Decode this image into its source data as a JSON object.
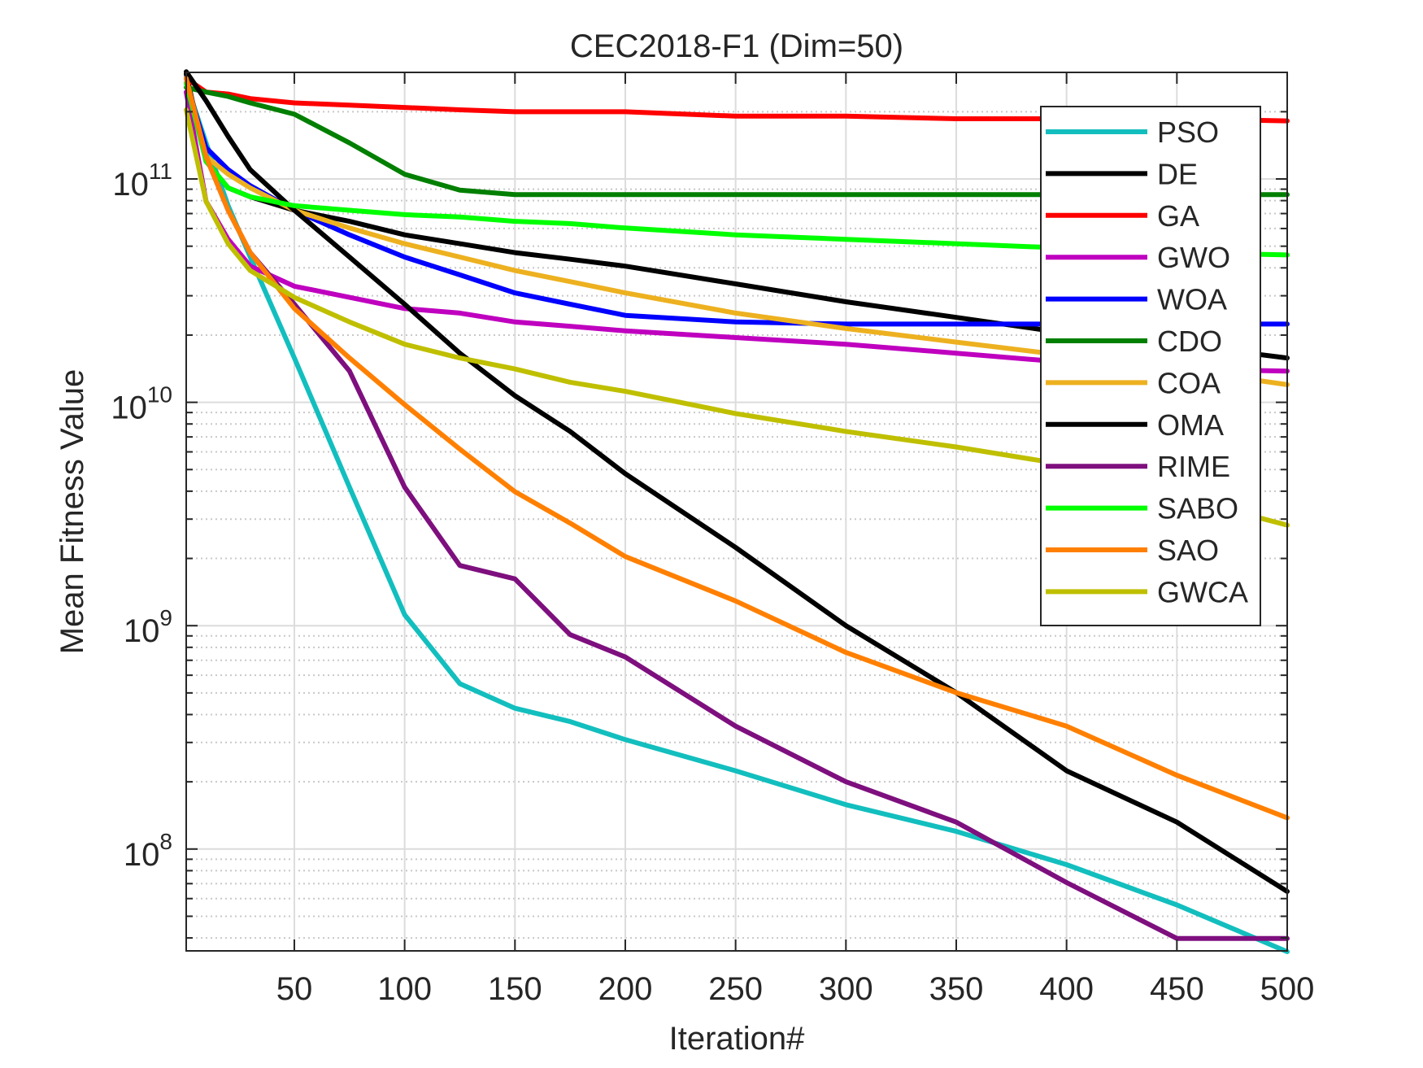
{
  "chart_data": {
    "type": "line",
    "title": "CEC2018-F1 (Dim=50)",
    "xlabel": "Iteration#",
    "ylabel": "Mean Fitness Value",
    "xlim": [
      1,
      500
    ],
    "ylim": [
      35000000.0,
      300000000000.0
    ],
    "yscale": "log",
    "grid": true,
    "minor_grid": true,
    "legend_position": "top-right",
    "x_ticks": [
      50,
      100,
      150,
      200,
      250,
      300,
      350,
      400,
      450,
      500
    ],
    "x_tick_labels": [
      "50",
      "100",
      "150",
      "200",
      "250",
      "300",
      "350",
      "400",
      "450",
      "500"
    ],
    "y_ticks": [
      {
        "value": 100000000.0,
        "base": "10",
        "exponent": "8"
      },
      {
        "value": 1000000000.0,
        "base": "10",
        "exponent": "9"
      },
      {
        "value": 10000000000.0,
        "base": "10",
        "exponent": "10"
      },
      {
        "value": 100000000000.0,
        "base": "10",
        "exponent": "11"
      }
    ],
    "x": [
      1,
      10,
      20,
      30,
      50,
      75,
      100,
      125,
      150,
      175,
      200,
      250,
      300,
      350,
      400,
      450,
      500
    ],
    "series": [
      {
        "name": "PSO",
        "color": "#13BEBE",
        "values": [
          269000000000.0,
          145000000000.0,
          75900000000.0,
          44700000000.0,
          15800000000.0,
          4170000000.0,
          1120000000.0,
          550000000.0,
          427000000.0,
          372000000.0,
          309000000.0,
          224000000.0,
          158000000.0,
          120000000.0,
          85100000.0,
          56200000.0,
          34700000.0
        ]
      },
      {
        "name": "DE",
        "color": "#000000",
        "values": [
          295000000000.0,
          120000000000.0,
          91200000000.0,
          83200000000.0,
          72400000000.0,
          64600000000.0,
          56200000000.0,
          51300000000.0,
          46800000000.0,
          43700000000.0,
          40700000000.0,
          33900000000.0,
          28200000000.0,
          24000000000.0,
          20400000000.0,
          18200000000.0,
          15800000000.0
        ]
      },
      {
        "name": "GA",
        "color": "#FF0000",
        "values": [
          282000000000.0,
          245000000000.0,
          240000000000.0,
          229000000000.0,
          219000000000.0,
          214000000000.0,
          209000000000.0,
          204000000000.0,
          200000000000.0,
          200000000000.0,
          200000000000.0,
          191000000000.0,
          191000000000.0,
          186000000000.0,
          186000000000.0,
          186000000000.0,
          182000000000.0
        ]
      },
      {
        "name": "GWO",
        "color": "#BF00BF",
        "values": [
          245000000000.0,
          79400000000.0,
          53700000000.0,
          40700000000.0,
          33100000000.0,
          29500000000.0,
          26300000000.0,
          25100000000.0,
          22900000000.0,
          21900000000.0,
          20900000000.0,
          19500000000.0,
          18200000000.0,
          16600000000.0,
          15100000000.0,
          14100000000.0,
          13800000000.0
        ]
      },
      {
        "name": "WOA",
        "color": "#0000FF",
        "values": [
          269000000000.0,
          138000000000.0,
          110000000000.0,
          93300000000.0,
          72400000000.0,
          56200000000.0,
          44700000000.0,
          37200000000.0,
          30900000000.0,
          27500000000.0,
          24500000000.0,
          22900000000.0,
          22400000000.0,
          22400000000.0,
          22400000000.0,
          22400000000.0,
          22400000000.0
        ]
      },
      {
        "name": "CDO",
        "color": "#007F00",
        "values": [
          257000000000.0,
          245000000000.0,
          234000000000.0,
          219000000000.0,
          195000000000.0,
          145000000000.0,
          105000000000.0,
          89100000000.0,
          85100000000.0,
          85100000000.0,
          85100000000.0,
          85100000000.0,
          85100000000.0,
          85100000000.0,
          85100000000.0,
          85100000000.0,
          85100000000.0
        ]
      },
      {
        "name": "COA",
        "color": "#EDB120",
        "values": [
          269000000000.0,
          126000000000.0,
          105000000000.0,
          91200000000.0,
          72400000000.0,
          60300000000.0,
          51300000000.0,
          44700000000.0,
          38900000000.0,
          34700000000.0,
          30900000000.0,
          25100000000.0,
          21400000000.0,
          18600000000.0,
          16200000000.0,
          14100000000.0,
          12000000000.0
        ]
      },
      {
        "name": "OMA",
        "color": "#000000",
        "values": [
          302000000000.0,
          224000000000.0,
          155000000000.0,
          110000000000.0,
          72400000000.0,
          44700000000.0,
          27500000000.0,
          16600000000.0,
          10700000000.0,
          7410000000.0,
          4790000000.0,
          2240000000.0,
          1000000000.0,
          501000000.0,
          224000000.0,
          132000000.0,
          64600000.0
        ]
      },
      {
        "name": "RIME",
        "color": "#7E0F7E",
        "values": [
          282000000000.0,
          126000000000.0,
          72400000000.0,
          46800000000.0,
          27500000000.0,
          13800000000.0,
          4170000000.0,
          1860000000.0,
          1620000000.0,
          912000000.0,
          724000000.0,
          355000000.0,
          200000000.0,
          132000000.0,
          70800000.0,
          39800000.0,
          39800000.0
        ]
      },
      {
        "name": "SABO",
        "color": "#00FF00",
        "values": [
          269000000000.0,
          120000000000.0,
          91200000000.0,
          83200000000.0,
          75900000000.0,
          72400000000.0,
          69200000000.0,
          67600000000.0,
          64600000000.0,
          63100000000.0,
          60300000000.0,
          56200000000.0,
          53700000000.0,
          51300000000.0,
          49000000000.0,
          46800000000.0,
          45700000000.0
        ]
      },
      {
        "name": "SAO",
        "color": "#FF8000",
        "values": [
          282000000000.0,
          126000000000.0,
          72400000000.0,
          46800000000.0,
          26300000000.0,
          15800000000.0,
          9770000000.0,
          6170000000.0,
          3980000000.0,
          2880000000.0,
          2040000000.0,
          1290000000.0,
          759000000.0,
          501000000.0,
          355000000.0,
          214000000.0,
          138000000.0
        ]
      },
      {
        "name": "GWCA",
        "color": "#BFBF00",
        "values": [
          204000000000.0,
          79400000000.0,
          51300000000.0,
          38900000000.0,
          29500000000.0,
          22900000000.0,
          18200000000.0,
          15800000000.0,
          14100000000.0,
          12300000000.0,
          11200000000.0,
          8910000000.0,
          7410000000.0,
          6310000000.0,
          5250000000.0,
          3800000000.0,
          2820000000.0
        ]
      }
    ]
  }
}
